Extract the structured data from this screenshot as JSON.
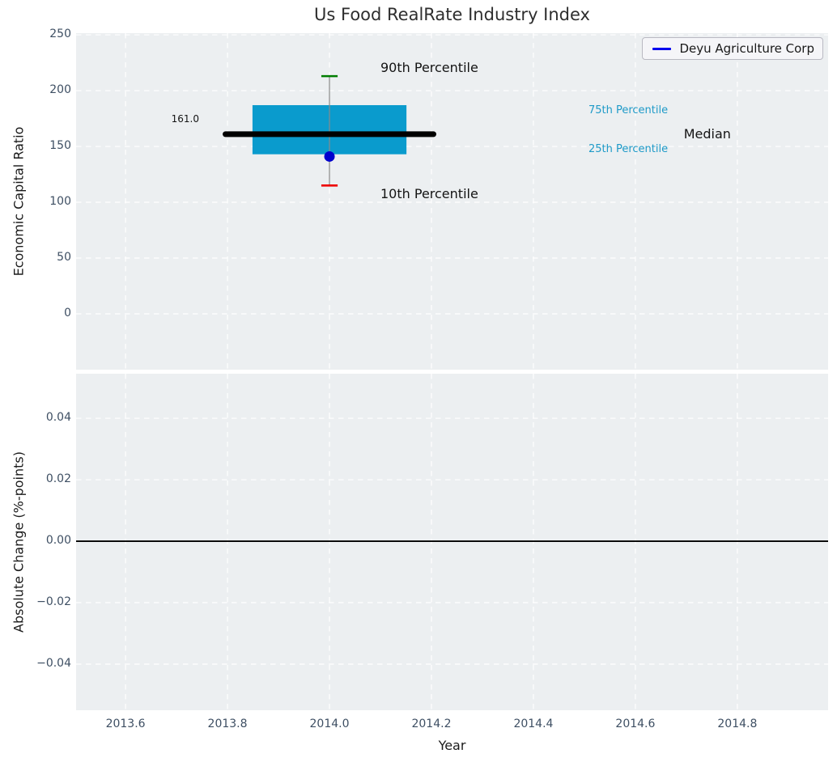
{
  "figure_title": "Us Food RealRate Industry Index",
  "colors": {
    "plot_background": "#eceff1",
    "grid": "#ffffff",
    "box_fill": "#0a9bcd",
    "median_line": "#000000",
    "whisker": "#8a8a8a",
    "cap_90th": "#007d00",
    "cap_10th": "#ee0000",
    "company_point": "#0000cd",
    "legend_line": "#0000ee",
    "percentile_label_text": "#1e9ac8",
    "annotation_text": "#141414",
    "tick_label": "#3e4f63",
    "zero_line": "#000000"
  },
  "legend": {
    "label": "Deyu Agriculture Corp",
    "position": "upper right"
  },
  "chart_data": [
    {
      "type": "box",
      "title": "Us Food RealRate Industry Index",
      "ylabel": "Economic Capital Ratio",
      "xlabel": "",
      "series_name": "Deyu Agriculture Corp",
      "x_center": 2014.0,
      "percentiles": {
        "p10": 115,
        "p25": 143,
        "median": 161,
        "p75": 187,
        "p90": 213
      },
      "company_point": {
        "x": 2014.0,
        "value": 141
      },
      "median_value_label": "161.0",
      "xlim": [
        2013.503,
        2014.978
      ],
      "ylim": [
        -50,
        251.5
      ],
      "grid": "white-dashed",
      "box_width_years": 0.302,
      "median_line_width_years": 0.408,
      "cap_width_years": 0.032,
      "yticks": [
        {
          "v": 0,
          "label": "0"
        },
        {
          "v": 50,
          "label": "50"
        },
        {
          "v": 100,
          "label": "100"
        },
        {
          "v": 150,
          "label": "150"
        },
        {
          "v": 200,
          "label": "200"
        },
        {
          "v": 250,
          "label": "250"
        }
      ],
      "annotations": [
        {
          "text": "90th Percentile",
          "x": 2014.1,
          "y": 220,
          "size": 16,
          "color": "#141414",
          "align": "left"
        },
        {
          "text": "10th Percentile",
          "x": 2014.1,
          "y": 107,
          "size": 16,
          "color": "#141414",
          "align": "left"
        },
        {
          "text": "Median",
          "x": 2014.695,
          "y": 161,
          "size": 16,
          "color": "#141414",
          "align": "left"
        },
        {
          "text": "75th Percentile",
          "x": 2014.508,
          "y": 182,
          "size": 13,
          "color": "#1e9ac8",
          "align": "left"
        },
        {
          "text": "25th Percentile",
          "x": 2014.508,
          "y": 147,
          "size": 13,
          "color": "#1e9ac8",
          "align": "left"
        },
        {
          "text": "161.0",
          "x": 2013.717,
          "y": 175,
          "size": 12,
          "color": "#141414",
          "align": "center"
        }
      ]
    },
    {
      "type": "line",
      "title": "",
      "ylabel": "Absolute Change (%-points)",
      "xlabel": "Year",
      "ylim": [
        -0.055,
        0.0545
      ],
      "zero_line": 0.0,
      "series": [],
      "grid": "white-dashed",
      "yticks": [
        {
          "v": 0.04,
          "label": "0.04"
        },
        {
          "v": 0.02,
          "label": "0.02"
        },
        {
          "v": 0.0,
          "label": "0.00"
        },
        {
          "v": -0.02,
          "label": "−0.02"
        },
        {
          "v": -0.04,
          "label": "−0.04"
        }
      ],
      "xticks": [
        {
          "v": 2013.6,
          "label": "2013.6"
        },
        {
          "v": 2013.8,
          "label": "2013.8"
        },
        {
          "v": 2014.0,
          "label": "2014.0"
        },
        {
          "v": 2014.2,
          "label": "2014.2"
        },
        {
          "v": 2014.4,
          "label": "2014.4"
        },
        {
          "v": 2014.6,
          "label": "2014.6"
        },
        {
          "v": 2014.8,
          "label": "2014.8"
        }
      ]
    }
  ]
}
